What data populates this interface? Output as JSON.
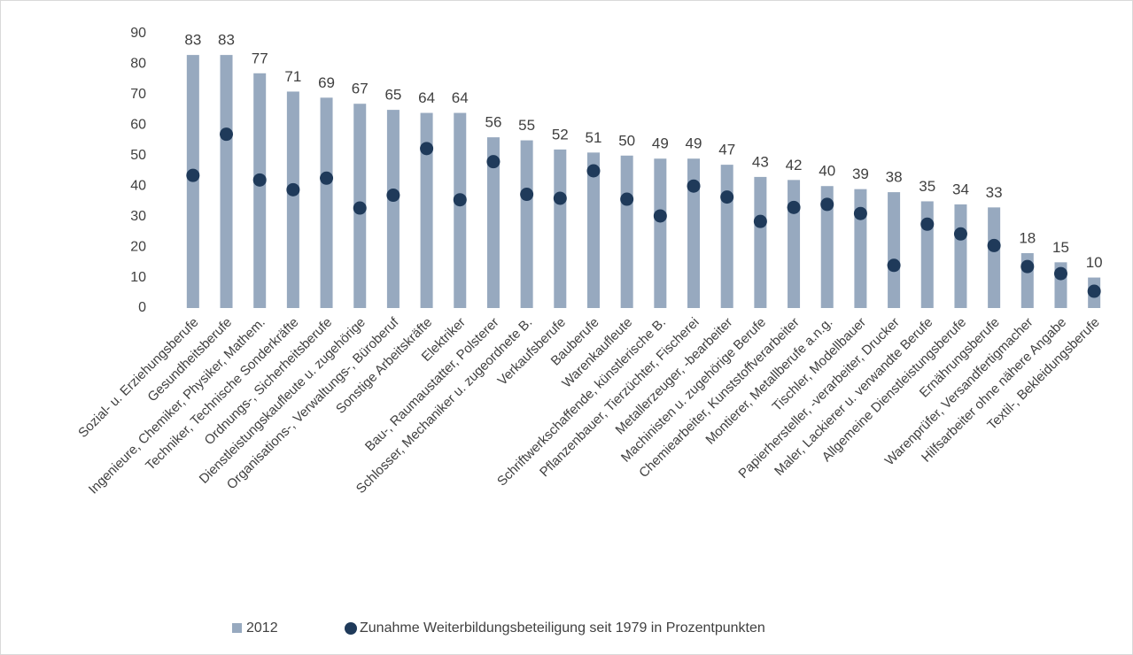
{
  "chart_data": {
    "type": "bar",
    "categories": [
      "Sozial- u. Erziehungsberufe",
      "Gesundheitsberufe",
      "Ingenieure, Chemiker, Physiker, Mathem.",
      "Techniker, Technische Sonderkräfte",
      "Ordnungs-, Sicherheitsberufe",
      "Dienstleistungskaufleute u. zugehörige",
      "Organisations-, Verwaltungs-, Büroberuf",
      "Sonstige Arbeitskräfte",
      "Elektriker",
      "Bau-, Raumaustatter, Polsterer",
      "Schlosser, Mechaniker u. zugeordnete B.",
      "Verkaufsberufe",
      "Bauberufe",
      "Warenkaufleute",
      "Schriftwerkschaffende, künstlerische B.",
      "Pflanzenbauer, Tierzüchter, Fischerei",
      "Metallerzeuger, -bearbeiter",
      "Machinisten u. zugehörige Berufe",
      "Chemiearbeiter, Kunststoffverarbeiter",
      "Montierer, Metallberufe a.n.g.",
      "Tischler, Modellbauer",
      "Papierhersteller, -verarbeiter, Drucker",
      "Maler, Lackierer u. verwandte Berufe",
      "Allgemeine Dienstleistungsberufe",
      "Ernährungsberufe",
      "Warenprüfer, Versandfertigmacher",
      "Hilfsarbeiter ohne nähere Angabe",
      "Textil-, Bekleidungsberufe"
    ],
    "series": [
      {
        "name": "2012",
        "color": "#97a9bf",
        "mark": "bar",
        "data_labels": true,
        "values": [
          83,
          83,
          77,
          71,
          69,
          67,
          65,
          64,
          64,
          56,
          55,
          52,
          51,
          50,
          49,
          49,
          47,
          43,
          42,
          40,
          39,
          38,
          35,
          34,
          33,
          18,
          15,
          10
        ]
      },
      {
        "name": "Zunahme Weiterbildungsbeteiligung seit 1979 in Prozentpunkten",
        "color": "#1f3a5a",
        "mark": "dot",
        "data_labels": false,
        "values": [
          43.5,
          57,
          42,
          38.8,
          42.6,
          32.8,
          37,
          52.3,
          35.5,
          48,
          37.3,
          36,
          45,
          35.7,
          30.2,
          40,
          36.4,
          28.4,
          33,
          34,
          31,
          14,
          27.5,
          24.3,
          20.5,
          13.6,
          11.3,
          5.5
        ]
      }
    ],
    "ylim": [
      0,
      90
    ],
    "yticks": [
      0,
      10,
      20,
      30,
      40,
      50,
      60,
      70,
      80,
      90
    ],
    "grid": false
  }
}
